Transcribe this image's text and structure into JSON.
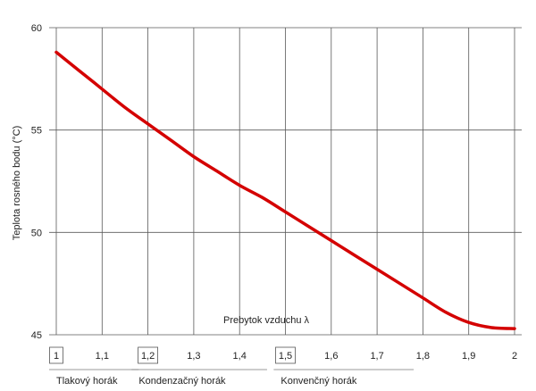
{
  "chart_data": {
    "type": "line",
    "ylabel": "Teplota rosného bodu (°C)",
    "xlabel": "Prebytok vzduchu λ",
    "xlim": [
      1,
      2
    ],
    "ylim": [
      45,
      60
    ],
    "x_ticks": [
      "1",
      "1,1",
      "1,2",
      "1,3",
      "1,4",
      "1,5",
      "1,6",
      "1,7",
      "1,8",
      "1,9",
      "2"
    ],
    "y_ticks": [
      "60",
      "55",
      "50",
      "45"
    ],
    "boxed_x_ticks": [
      "1",
      "1,2",
      "1,5"
    ],
    "grid": true,
    "series": [
      {
        "color": "#d40000",
        "x": [
          1.0,
          1.05,
          1.1,
          1.15,
          1.2,
          1.25,
          1.3,
          1.35,
          1.4,
          1.45,
          1.5,
          1.55,
          1.6,
          1.65,
          1.7,
          1.75,
          1.8,
          1.85,
          1.9,
          1.95,
          2.0
        ],
        "y": [
          58.8,
          57.9,
          57.0,
          56.1,
          55.3,
          54.5,
          53.7,
          53.0,
          52.3,
          51.7,
          51.0,
          50.3,
          49.6,
          48.9,
          48.2,
          47.5,
          46.8,
          46.1,
          45.6,
          45.35,
          45.3
        ]
      }
    ],
    "ranges": [
      {
        "label": "Tlakový horák",
        "from": 1.0,
        "to": 1.18
      },
      {
        "label": "Kondenzačný horák",
        "from": 1.18,
        "to": 1.46
      },
      {
        "label": "Konvenčný horák",
        "from": 1.49,
        "to": 1.78
      }
    ]
  }
}
